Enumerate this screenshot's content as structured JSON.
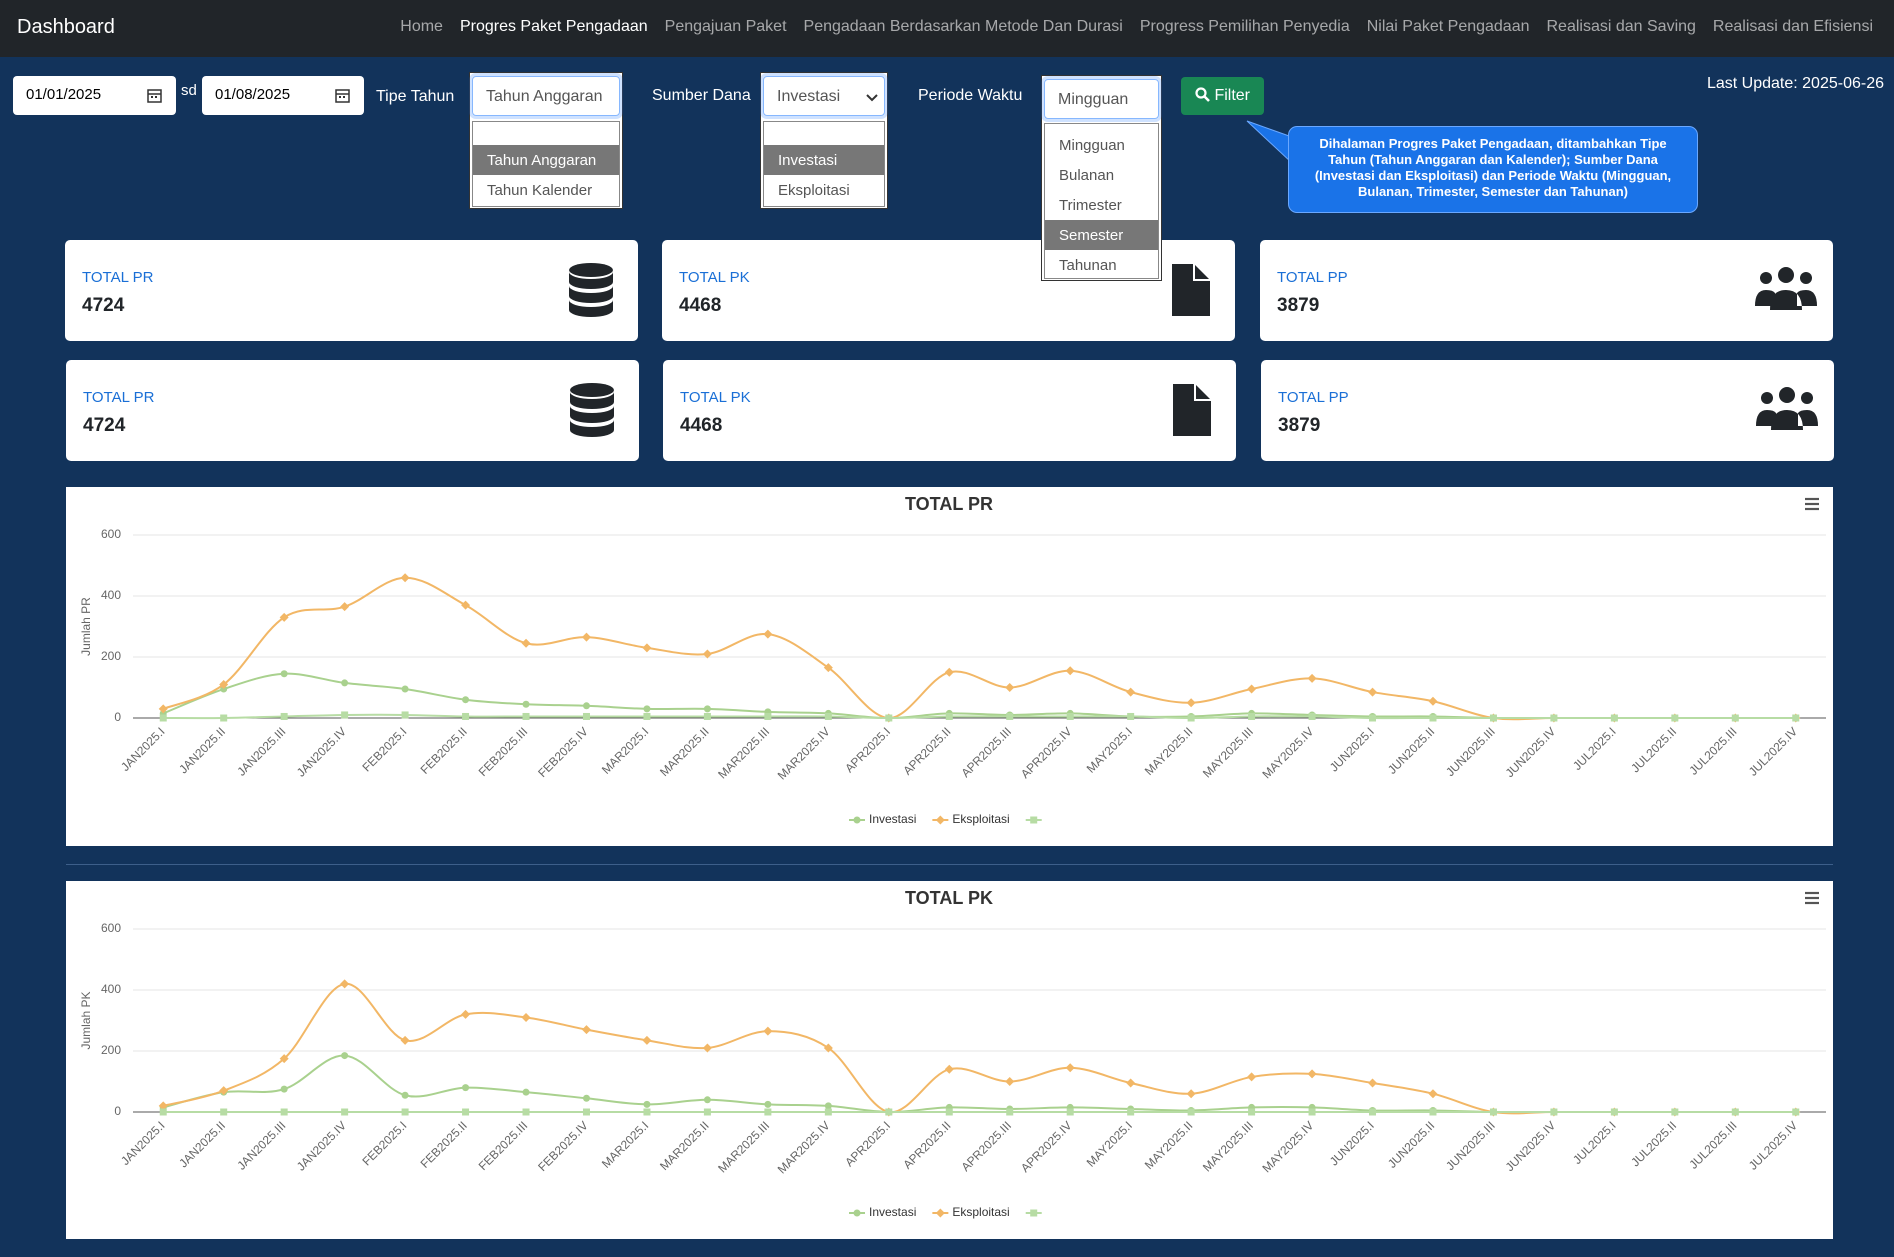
{
  "navbar": {
    "brand": "Dashboard",
    "active": 1,
    "links": [
      "Home",
      "Progres Paket Pengadaan",
      "Pengajuan Paket",
      "Pengadaan Berdasarkan Metode Dan Durasi",
      "Progress Pemilihan Penyedia",
      "Nilai Paket Pengadaan",
      "Realisasi dan Saving",
      "Realisasi dan Efisiensi"
    ]
  },
  "filters": {
    "date_from": "01/01/2025",
    "separator": "sd",
    "date_to": "01/08/2025",
    "tipe_tahun": {
      "label": "Tipe Tahun",
      "selected": "Tahun Anggaran",
      "highlighted": 0,
      "options": [
        "Tahun Anggaran",
        "Tahun Kalender"
      ]
    },
    "sumber_dana": {
      "label": "Sumber Dana",
      "selected": "Investasi",
      "highlighted": 0,
      "options": [
        "Investasi",
        "Eksploitasi"
      ]
    },
    "periode_waktu": {
      "label": "Periode Waktu",
      "selected": "Mingguan",
      "highlighted": 3,
      "options": [
        "Mingguan",
        "Bulanan",
        "Trimester",
        "Semester",
        "Tahunan"
      ]
    },
    "button": "Filter"
  },
  "last_update": "Last Update: 2025-06-26",
  "callout": "Dihalaman Progres Paket Pengadaan, ditambahkan Tipe Tahun (Tahun Anggaran dan Kalender); Sumber Dana (Investasi dan Eksploitasi) dan Periode Waktu (Mingguan, Bulanan, Trimester, Semester dan Tahunan)",
  "cards": [
    [
      {
        "title": "TOTAL PR",
        "value": "4724"
      },
      {
        "title": "TOTAL PK",
        "value": "4468"
      },
      {
        "title": "TOTAL PP",
        "value": "3879"
      }
    ],
    [
      {
        "title": "TOTAL PR",
        "value": "4724"
      },
      {
        "title": "TOTAL PK",
        "value": "4468"
      },
      {
        "title": "TOTAL PP",
        "value": "3879"
      }
    ]
  ],
  "chart_data": [
    {
      "type": "line",
      "title": "TOTAL PR",
      "y_label": "Jumlah PR",
      "categories": [
        "JAN2025.I",
        "JAN2025.II",
        "JAN2025.III",
        "JAN2025.IV",
        "FEB2025.I",
        "FEB2025.II",
        "FEB2025.III",
        "FEB2025.IV",
        "MAR2025.I",
        "MAR2025.II",
        "MAR2025.III",
        "MAR2025.IV",
        "APR2025.I",
        "APR2025.II",
        "APR2025.III",
        "APR2025.IV",
        "MAY2025.I",
        "MAY2025.II",
        "MAY2025.III",
        "MAY2025.IV",
        "JUN2025.I",
        "JUN2025.II",
        "JUN2025.III",
        "JUN2025.IV",
        "JUL2025.I",
        "JUL2025.II",
        "JUL2025.III",
        "JUL2025.IV"
      ],
      "series": [
        {
          "name": "Investasi",
          "color": "#a9d18e",
          "values": [
            15,
            95,
            145,
            115,
            95,
            60,
            45,
            40,
            30,
            30,
            20,
            15,
            0,
            15,
            10,
            15,
            5,
            5,
            15,
            10,
            5,
            5,
            0,
            0,
            0,
            0,
            0,
            0
          ]
        },
        {
          "name": "Eksploitasi",
          "color": "#f2b766",
          "values": [
            30,
            110,
            330,
            365,
            460,
            370,
            245,
            265,
            230,
            210,
            275,
            165,
            0,
            150,
            100,
            155,
            85,
            50,
            95,
            130,
            85,
            55,
            0,
            0,
            0,
            0,
            0,
            0
          ]
        },
        {
          "color": "#b7dca4",
          "values": [
            0,
            0,
            5,
            10,
            10,
            5,
            5,
            5,
            5,
            5,
            5,
            5,
            0,
            5,
            5,
            5,
            5,
            0,
            5,
            5,
            0,
            0,
            0,
            0,
            0,
            0,
            0,
            0
          ]
        }
      ],
      "ylim": [
        0,
        600
      ],
      "yticks": [
        0,
        200,
        400,
        600
      ],
      "grid": true
    },
    {
      "type": "line",
      "title": "TOTAL PK",
      "y_label": "Jumlah PK",
      "categories": [
        "JAN2025.I",
        "JAN2025.II",
        "JAN2025.III",
        "JAN2025.IV",
        "FEB2025.I",
        "FEB2025.II",
        "FEB2025.III",
        "FEB2025.IV",
        "MAR2025.I",
        "MAR2025.II",
        "MAR2025.III",
        "MAR2025.IV",
        "APR2025.I",
        "APR2025.II",
        "APR2025.III",
        "APR2025.IV",
        "MAY2025.I",
        "MAY2025.II",
        "MAY2025.III",
        "MAY2025.IV",
        "JUN2025.I",
        "JUN2025.II",
        "JUN2025.III",
        "JUN2025.IV",
        "JUL2025.I",
        "JUL2025.II",
        "JUL2025.III",
        "JUL2025.IV"
      ],
      "series": [
        {
          "name": "Investasi",
          "color": "#a9d18e",
          "values": [
            15,
            65,
            75,
            185,
            55,
            80,
            65,
            45,
            25,
            40,
            25,
            20,
            0,
            15,
            10,
            15,
            10,
            5,
            15,
            15,
            5,
            5,
            0,
            0,
            0,
            0,
            0,
            0
          ]
        },
        {
          "name": "Eksploitasi",
          "color": "#f2b766",
          "values": [
            20,
            70,
            175,
            420,
            235,
            320,
            310,
            270,
            235,
            210,
            265,
            210,
            0,
            140,
            100,
            145,
            95,
            60,
            115,
            125,
            95,
            60,
            0,
            0,
            0,
            0,
            0,
            0
          ]
        },
        {
          "color": "#b7dca4",
          "values": [
            0,
            0,
            0,
            0,
            0,
            0,
            0,
            0,
            0,
            0,
            0,
            0,
            0,
            0,
            0,
            0,
            0,
            0,
            0,
            0,
            0,
            0,
            0,
            0,
            0,
            0,
            0,
            0
          ]
        }
      ],
      "ylim": [
        0,
        600
      ],
      "yticks": [
        0,
        200,
        400,
        600
      ],
      "grid": true
    }
  ]
}
